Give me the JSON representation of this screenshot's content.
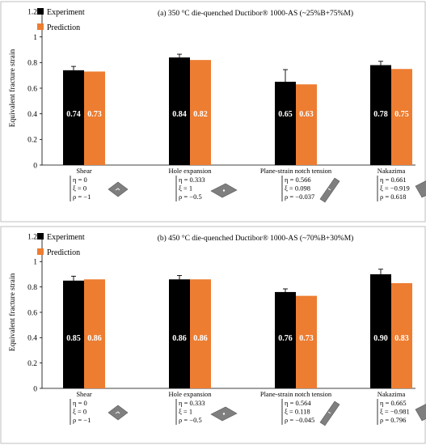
{
  "legend": {
    "experiment": "Experiment",
    "prediction": "Prediction"
  },
  "colors": {
    "experiment": "#000000",
    "prediction": "#ed7d31"
  },
  "chart_data": [
    {
      "type": "bar",
      "title": "(a) 350 °C die-quenched Ductibor® 1000-AS (~25%B+75%M)",
      "ylabel": "Equivalent fracture strain",
      "xlabel": "",
      "ylim": [
        0,
        1.2
      ],
      "yticks": [
        "0",
        "0.2",
        "0.4",
        "0.6",
        "0.8",
        "1",
        "1.2"
      ],
      "categories": [
        "Shear",
        "Hole expansion",
        "Plane-strain notch tension",
        "Nakazima"
      ],
      "series": [
        {
          "name": "Experiment",
          "values": [
            0.74,
            0.84,
            0.65,
            0.78
          ],
          "errors": [
            0.03,
            0.025,
            0.095,
            0.03
          ],
          "labels": [
            "0.74",
            "0.84",
            "0.65",
            "0.78"
          ]
        },
        {
          "name": "Prediction",
          "values": [
            0.73,
            0.82,
            0.63,
            0.75
          ],
          "labels": [
            "0.73",
            "0.82",
            "0.63",
            "0.75"
          ]
        }
      ],
      "parameters": [
        [
          "η = 0",
          "ξ = 0",
          "ρ = −1"
        ],
        [
          "η = 0.333",
          "ξ = 1",
          "ρ = −0.5"
        ],
        [
          "η = 0.566",
          "ξ = 0.098",
          "ρ = −0.037"
        ],
        [
          "η = 0.661",
          "ξ = −0.919",
          "ρ = 0.618"
        ]
      ],
      "grid": false,
      "legend_position": "top-left"
    },
    {
      "type": "bar",
      "title": "(b) 450 °C die-quenched Ductibor® 1000-AS (~70%B+30%M)",
      "ylabel": "Equivalent fracture strain",
      "xlabel": "",
      "ylim": [
        0,
        1.2
      ],
      "yticks": [
        "0",
        "0.2",
        "0.4",
        "0.6",
        "0.8",
        "1",
        "1.2"
      ],
      "categories": [
        "Shear",
        "Hole expansion",
        "Plane-strain notch tension",
        "Nakazima"
      ],
      "series": [
        {
          "name": "Experiment",
          "values": [
            0.85,
            0.86,
            0.76,
            0.9
          ],
          "errors": [
            0.035,
            0.03,
            0.025,
            0.04
          ],
          "labels": [
            "0.85",
            "0.86",
            "0.76",
            "0.90"
          ]
        },
        {
          "name": "Prediction",
          "values": [
            0.86,
            0.86,
            0.73,
            0.83
          ],
          "labels": [
            "0.86",
            "0.86",
            "0.73",
            "0.83"
          ]
        }
      ],
      "parameters": [
        [
          "η = 0",
          "ξ = 0",
          "ρ = −1"
        ],
        [
          "η = 0.333",
          "ξ = 1",
          "ρ = −0.5"
        ],
        [
          "η = 0.564",
          "ξ = 0.118",
          "ρ = −0.045"
        ],
        [
          "η = 0.665",
          "ξ = −0.981",
          "ρ = 0.796"
        ]
      ],
      "grid": false,
      "legend_position": "top-left"
    }
  ]
}
